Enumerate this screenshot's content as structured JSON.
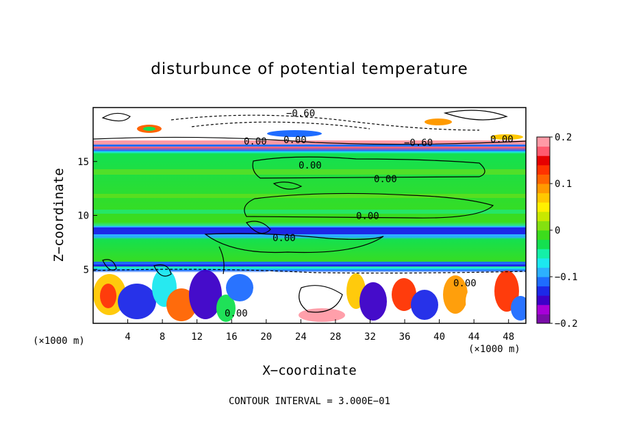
{
  "chart_data": {
    "type": "heatmap",
    "title": "disturbunce of potential temperature",
    "xlabel": "X−coordinate",
    "ylabel": "Z−coordinate",
    "x_unit": "(×1000 m)",
    "y_unit": "(×1000 m)",
    "x_ticks": [
      "4",
      "8",
      "12",
      "16",
      "20",
      "24",
      "28",
      "32",
      "36",
      "40",
      "44",
      "48"
    ],
    "y_ticks": [
      "5",
      "10",
      "15"
    ],
    "xlim": [
      0,
      50
    ],
    "ylim": [
      0,
      20
    ],
    "colorbar": {
      "ticks": [
        "0.2",
        "0.1",
        "0",
        "−0.1",
        "−0.2"
      ],
      "range": [
        -0.2,
        0.2
      ],
      "colors": [
        "#7a0da8",
        "#a800d8",
        "#3c00c8",
        "#1c28e8",
        "#1e6cff",
        "#2cb0ff",
        "#1ce8f0",
        "#14f0a8",
        "#14e050",
        "#3cdc1c",
        "#84e010",
        "#c8e800",
        "#fff000",
        "#ffc800",
        "#ff9a00",
        "#ff6400",
        "#ff3200",
        "#e60000",
        "#ff5a6e",
        "#ff9aa6"
      ]
    },
    "contour_labels": [
      "−0.60",
      "0.00",
      "0.00",
      "0.00",
      "−0.60",
      "0.00",
      "0.00",
      "0.00",
      "0.00",
      "0.00",
      "0.00"
    ],
    "footer": "CONTOUR INTERVAL = 3.000E−01"
  }
}
